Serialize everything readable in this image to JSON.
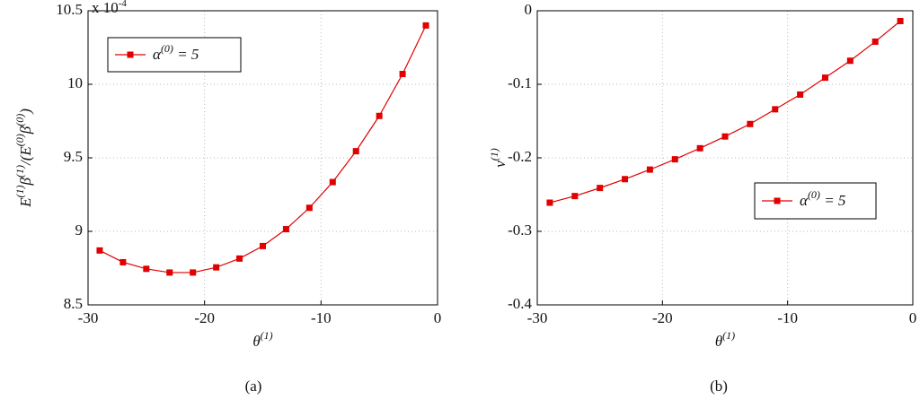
{
  "chart_data": [
    {
      "type": "line",
      "caption": "(a)",
      "xlabel": "θ(1)",
      "ylabel": "E(1)β(1)/(E(0)β(0))",
      "y_multiplier": {
        "base": "x 10",
        "exponent": "-4"
      },
      "x": [
        -29,
        -27,
        -25,
        -23,
        -21,
        -19,
        -17,
        -15,
        -13,
        -11,
        -9,
        -7,
        -5,
        -3,
        -1
      ],
      "series": [
        {
          "name": "α(0) = 5",
          "color": "#e00000",
          "values": [
            8.87,
            8.79,
            8.745,
            8.72,
            8.72,
            8.755,
            8.815,
            8.9,
            9.015,
            9.16,
            9.335,
            9.545,
            9.785,
            10.07,
            10.4
          ]
        }
      ],
      "xlim": [
        -30,
        0
      ],
      "ylim": [
        8.5,
        10.5
      ],
      "xticks": [
        -30,
        -20,
        -10,
        0
      ],
      "yticks": [
        8.5,
        9,
        9.5,
        10,
        10.5
      ],
      "grid": true,
      "legend": "upper left"
    },
    {
      "type": "line",
      "caption": "(b)",
      "xlabel": "θ(1)",
      "ylabel": "ν(1)",
      "x": [
        -29,
        -27,
        -25,
        -23,
        -21,
        -19,
        -17,
        -15,
        -13,
        -11,
        -9,
        -7,
        -5,
        -3,
        -1
      ],
      "series": [
        {
          "name": "α(0) = 5",
          "color": "#e00000",
          "values": [
            -0.261,
            -0.252,
            -0.241,
            -0.229,
            -0.216,
            -0.202,
            -0.187,
            -0.171,
            -0.154,
            -0.134,
            -0.114,
            -0.091,
            -0.068,
            -0.042,
            -0.014
          ]
        }
      ],
      "xlim": [
        -30,
        0
      ],
      "ylim": [
        -0.4,
        0
      ],
      "xticks": [
        -30,
        -20,
        -10,
        0
      ],
      "yticks": [
        -0.4,
        -0.3,
        -0.2,
        -0.1,
        0
      ],
      "grid": true,
      "legend": "center right"
    }
  ]
}
